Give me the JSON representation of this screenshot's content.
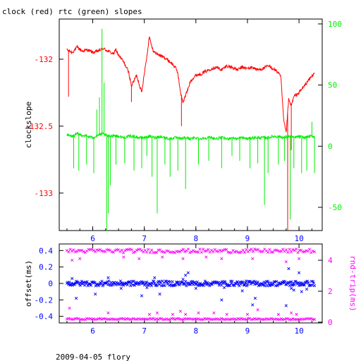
{
  "title": "clock (red) rtc (green) slopes",
  "footer": "2009-04-05 flory",
  "colors": {
    "red": "#ff0000",
    "green": "#00ee00",
    "blue": "#0000ff",
    "magenta": "#ff00ff",
    "black": "#000000"
  },
  "chart_data": [
    {
      "type": "line",
      "title": "clock (red) rtc (green) slopes",
      "ylabel": "clockslope",
      "x_ticks": [
        "6",
        "7",
        "8",
        "9",
        "10"
      ],
      "xlim": [
        5.35,
        10.45
      ],
      "ylim": [
        -133.28,
        -131.7
      ],
      "y_ticks": [
        "-132",
        "-132.5",
        "-133"
      ],
      "y2lim": [
        -69,
        104
      ],
      "y2_ticks": [
        "100",
        "50",
        "0",
        "-50"
      ],
      "series": [
        {
          "color": "red",
          "axis": "left",
          "points": [
            [
              5.5,
              -131.93
            ],
            [
              5.6,
              -131.95
            ],
            [
              5.7,
              -131.91
            ],
            [
              5.8,
              -131.94
            ],
            [
              5.9,
              -131.93
            ],
            [
              6.0,
              -131.95
            ],
            [
              6.1,
              -131.94
            ],
            [
              6.2,
              -131.92
            ],
            [
              6.3,
              -131.94
            ],
            [
              6.4,
              -131.96
            ],
            [
              6.45,
              -131.93
            ],
            [
              6.5,
              -131.97
            ],
            [
              6.6,
              -132.02
            ],
            [
              6.7,
              -132.1
            ],
            [
              6.75,
              -132.2
            ],
            [
              6.85,
              -132.12
            ],
            [
              6.95,
              -132.25
            ],
            [
              7.0,
              -132.1
            ],
            [
              7.05,
              -131.98
            ],
            [
              7.1,
              -131.82
            ],
            [
              7.15,
              -131.92
            ],
            [
              7.2,
              -131.95
            ],
            [
              7.3,
              -131.97
            ],
            [
              7.4,
              -131.99
            ],
            [
              7.5,
              -132.02
            ],
            [
              7.6,
              -132.06
            ],
            [
              7.65,
              -132.1
            ],
            [
              7.7,
              -132.25
            ],
            [
              7.75,
              -132.32
            ],
            [
              7.85,
              -132.22
            ],
            [
              7.9,
              -132.16
            ],
            [
              8.0,
              -132.12
            ],
            [
              8.1,
              -132.11
            ],
            [
              8.2,
              -132.09
            ],
            [
              8.3,
              -132.07
            ],
            [
              8.4,
              -132.06
            ],
            [
              8.5,
              -132.08
            ],
            [
              8.6,
              -132.05
            ],
            [
              8.7,
              -132.06
            ],
            [
              8.8,
              -132.08
            ],
            [
              8.9,
              -132.06
            ],
            [
              9.0,
              -132.07
            ],
            [
              9.1,
              -132.06
            ],
            [
              9.2,
              -132.08
            ],
            [
              9.3,
              -132.07
            ],
            [
              9.4,
              -132.05
            ],
            [
              9.5,
              -132.07
            ],
            [
              9.6,
              -132.1
            ],
            [
              9.65,
              -132.14
            ],
            [
              9.7,
              -132.45
            ],
            [
              9.75,
              -132.55
            ],
            [
              9.8,
              -132.3
            ],
            [
              9.85,
              -132.35
            ],
            [
              9.9,
              -132.28
            ],
            [
              10.0,
              -132.25
            ],
            [
              10.1,
              -132.2
            ],
            [
              10.2,
              -132.15
            ],
            [
              10.3,
              -132.1
            ]
          ],
          "spikes": [
            [
              5.53,
              -132.28
            ],
            [
              6.75,
              -132.32
            ],
            [
              7.72,
              -132.5
            ],
            [
              9.78,
              -133.28
            ],
            [
              9.85,
              -132.68
            ]
          ]
        },
        {
          "color": "green",
          "axis": "right",
          "points": [
            [
              5.5,
              9
            ],
            [
              5.6,
              8
            ],
            [
              5.7,
              10
            ],
            [
              5.8,
              9
            ],
            [
              5.9,
              8
            ],
            [
              6.0,
              7
            ],
            [
              6.1,
              9
            ],
            [
              6.2,
              10
            ],
            [
              6.3,
              8
            ],
            [
              6.4,
              9
            ],
            [
              6.5,
              8
            ],
            [
              6.6,
              7
            ],
            [
              6.7,
              8
            ],
            [
              6.8,
              8
            ],
            [
              6.9,
              7
            ],
            [
              7.0,
              7
            ],
            [
              7.1,
              8
            ],
            [
              7.2,
              7
            ],
            [
              7.3,
              8
            ],
            [
              7.4,
              7
            ],
            [
              7.5,
              6
            ],
            [
              7.6,
              7
            ],
            [
              7.7,
              6
            ],
            [
              7.8,
              7
            ],
            [
              7.9,
              6
            ],
            [
              8.0,
              7
            ],
            [
              8.1,
              6
            ],
            [
              8.2,
              7
            ],
            [
              8.3,
              7
            ],
            [
              8.4,
              6
            ],
            [
              8.5,
              7
            ],
            [
              8.6,
              6
            ],
            [
              8.7,
              7
            ],
            [
              8.8,
              6
            ],
            [
              8.9,
              7
            ],
            [
              9.0,
              6
            ],
            [
              9.1,
              7
            ],
            [
              9.2,
              7
            ],
            [
              9.3,
              7
            ],
            [
              9.4,
              7
            ],
            [
              9.5,
              8
            ],
            [
              9.6,
              8
            ],
            [
              9.7,
              7
            ],
            [
              9.8,
              8
            ],
            [
              9.9,
              7
            ],
            [
              10.0,
              8
            ],
            [
              10.1,
              7
            ],
            [
              10.2,
              8
            ],
            [
              10.3,
              8
            ]
          ],
          "spikes": [
            [
              5.63,
              -18
            ],
            [
              5.73,
              -20
            ],
            [
              5.88,
              -15
            ],
            [
              6.02,
              -22
            ],
            [
              6.08,
              30
            ],
            [
              6.13,
              40
            ],
            [
              6.18,
              96
            ],
            [
              6.22,
              52
            ],
            [
              6.27,
              -69
            ],
            [
              6.3,
              -55
            ],
            [
              6.34,
              -32
            ],
            [
              6.45,
              -15
            ],
            [
              6.62,
              -14
            ],
            [
              6.8,
              -20
            ],
            [
              6.95,
              -18
            ],
            [
              7.05,
              -8
            ],
            [
              7.15,
              -25
            ],
            [
              7.25,
              -55
            ],
            [
              7.4,
              -15
            ],
            [
              7.5,
              -25
            ],
            [
              7.65,
              -20
            ],
            [
              7.8,
              -35
            ],
            [
              8.05,
              -15
            ],
            [
              8.25,
              -12
            ],
            [
              8.5,
              -18
            ],
            [
              8.7,
              -8
            ],
            [
              8.85,
              -12
            ],
            [
              9.05,
              -18
            ],
            [
              9.2,
              -14
            ],
            [
              9.33,
              -48
            ],
            [
              9.4,
              -22
            ],
            [
              9.6,
              -15
            ],
            [
              9.72,
              -12
            ],
            [
              9.83,
              -60
            ],
            [
              9.9,
              -18
            ],
            [
              10.05,
              -22
            ],
            [
              10.15,
              -20
            ],
            [
              10.25,
              20
            ],
            [
              10.3,
              -22
            ]
          ]
        }
      ]
    },
    {
      "type": "scatter",
      "ylabel": "offset(ms)",
      "y2label": "rnd-trip(ms)",
      "x_ticks": [
        "6",
        "7",
        "8",
        "9",
        "10"
      ],
      "xlim": [
        5.35,
        10.45
      ],
      "ylim": [
        -0.48,
        0.48
      ],
      "y_ticks": [
        "0.4",
        "0.2",
        "0",
        "-0.2",
        "-0.4"
      ],
      "y2lim": [
        -0.05,
        5.05
      ],
      "y2_ticks": [
        "4",
        "2",
        "0"
      ],
      "series": [
        {
          "color": "blue",
          "axis": "left",
          "band": {
            "x": [
              5.5,
              10.3
            ],
            "y": 0.0,
            "jitter": 0.03
          },
          "outliers": [
            [
              5.6,
              0.06
            ],
            [
              5.68,
              -0.18
            ],
            [
              6.05,
              -0.13
            ],
            [
              6.3,
              0.07
            ],
            [
              6.55,
              -0.06
            ],
            [
              6.95,
              -0.15
            ],
            [
              7.05,
              -0.05
            ],
            [
              7.2,
              0.07
            ],
            [
              7.3,
              -0.13
            ],
            [
              7.75,
              0.05
            ],
            [
              7.8,
              0.1
            ],
            [
              7.85,
              0.13
            ],
            [
              8.0,
              -0.06
            ],
            [
              8.5,
              -0.2
            ],
            [
              8.55,
              -0.05
            ],
            [
              8.9,
              -0.09
            ],
            [
              9.1,
              -0.26
            ],
            [
              9.15,
              -0.18
            ],
            [
              9.75,
              -0.27
            ],
            [
              9.8,
              0.18
            ],
            [
              9.85,
              -0.06
            ],
            [
              9.9,
              -0.08
            ],
            [
              10.0,
              0.13
            ],
            [
              10.05,
              -0.1
            ],
            [
              10.15,
              -0.07
            ]
          ]
        },
        {
          "color": "magenta",
          "axis": "right",
          "upper_band": {
            "x": [
              5.5,
              10.3
            ],
            "y": 4.6,
            "jitter": 0.12
          },
          "lower_band": {
            "x": [
              5.5,
              10.3
            ],
            "y": 0.2,
            "jitter": 0.04
          },
          "outliers": [
            [
              5.55,
              0.9
            ],
            [
              5.6,
              4.0
            ],
            [
              5.75,
              4.1
            ],
            [
              6.3,
              0.6
            ],
            [
              6.6,
              4.2
            ],
            [
              6.9,
              4.1
            ],
            [
              7.1,
              0.5
            ],
            [
              7.25,
              0.6
            ],
            [
              7.35,
              4.2
            ],
            [
              7.55,
              0.5
            ],
            [
              7.7,
              0.7
            ],
            [
              7.75,
              4.1
            ],
            [
              7.8,
              0.5
            ],
            [
              8.05,
              0.6
            ],
            [
              8.2,
              4.2
            ],
            [
              8.35,
              0.6
            ],
            [
              8.5,
              4.1
            ],
            [
              8.6,
              0.5
            ],
            [
              9.0,
              0.5
            ],
            [
              9.1,
              4.1
            ],
            [
              9.2,
              0.8
            ],
            [
              9.6,
              0.5
            ],
            [
              9.75,
              3.9
            ],
            [
              9.85,
              0.6
            ],
            [
              9.95,
              0.5
            ],
            [
              10.0,
              4.1
            ]
          ]
        }
      ]
    }
  ]
}
